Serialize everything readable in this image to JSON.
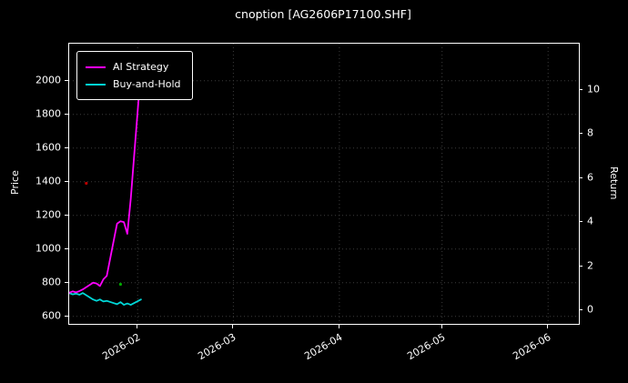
{
  "chart_data": {
    "type": "line",
    "title": "cnoption [AG2606P17100.SHF]",
    "ylabel_left": "Price",
    "ylabel_right": "Return",
    "background_color": "#000000",
    "text_color": "#ffffff",
    "grid": "dotted-faint",
    "legend_position": "upper-left",
    "x_tick_labels": [
      "2026-02",
      "2026-03",
      "2026-04",
      "2026-05",
      "2026-06"
    ],
    "x_tick_days": [
      31,
      59,
      90,
      120,
      151
    ],
    "x_domain_days": [
      11,
      160
    ],
    "ylim_left": [
      555,
      2220
    ],
    "y_ticks_left": [
      600,
      800,
      1000,
      1200,
      1400,
      1600,
      1800,
      2000
    ],
    "ylim_right": [
      -0.6,
      12.1
    ],
    "y_ticks_right": [
      0,
      2,
      4,
      6,
      8,
      10
    ],
    "dates": [
      "2026-01-12",
      "2026-01-13",
      "2026-01-14",
      "2026-01-15",
      "2026-01-16",
      "2026-01-19",
      "2026-01-20",
      "2026-01-21",
      "2026-01-22",
      "2026-01-23",
      "2026-01-26",
      "2026-01-27",
      "2026-01-28",
      "2026-01-29",
      "2026-01-30",
      "2026-02-02"
    ],
    "series": [
      {
        "name": "AI Strategy",
        "color": "#ff00ff",
        "values": [
          740,
          748,
          742,
          750,
          760,
          800,
          795,
          780,
          820,
          840,
          1150,
          1165,
          1160,
          1090,
          1300,
          2070
        ]
      },
      {
        "name": "Buy-and-Hold",
        "color": "#00d8d8",
        "values": [
          738,
          730,
          735,
          728,
          738,
          700,
          692,
          700,
          688,
          692,
          672,
          684,
          668,
          676,
          668,
          700
        ]
      }
    ],
    "markers": [
      {
        "color": "#bb0000",
        "date": "2026-01-17",
        "price": 1390
      },
      {
        "color": "#00aa00",
        "date": "2026-01-27",
        "price": 790
      }
    ]
  }
}
